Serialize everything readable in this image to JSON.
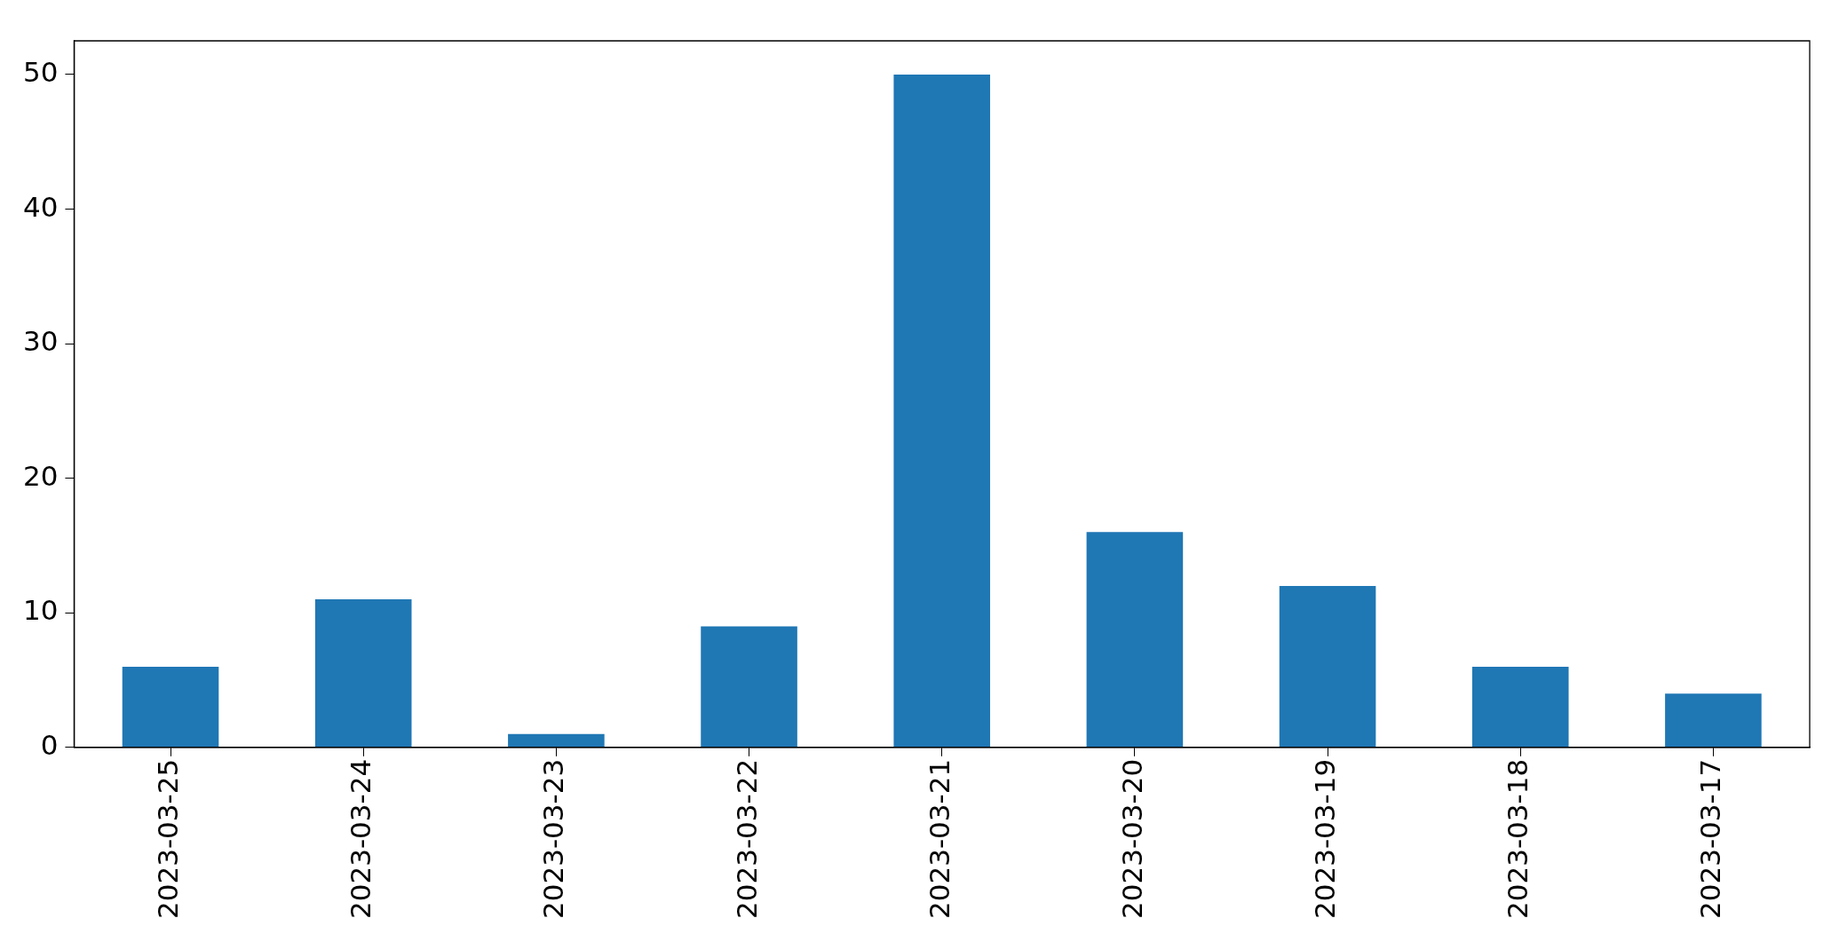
{
  "chart_data": {
    "type": "bar",
    "categories": [
      "2023-03-25",
      "2023-03-24",
      "2023-03-23",
      "2023-03-22",
      "2023-03-21",
      "2023-03-20",
      "2023-03-19",
      "2023-03-18",
      "2023-03-17"
    ],
    "values": [
      6,
      11,
      1,
      9,
      50,
      16,
      12,
      6,
      4
    ],
    "color": "#1f77b4",
    "ylim": [
      0,
      52.5
    ],
    "yticks": [
      0,
      10,
      20,
      30,
      40,
      50
    ],
    "grid": false,
    "legend": false
  }
}
